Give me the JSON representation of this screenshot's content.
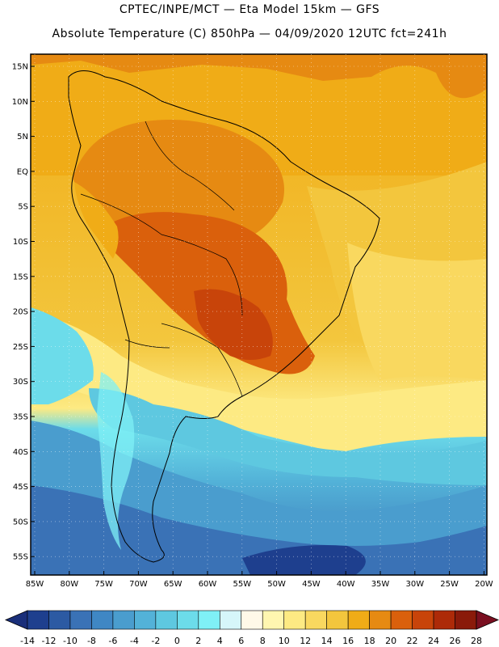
{
  "header": {
    "line1": "CPTEC/INPE/MCT —  Eta Model 15km — GFS",
    "line2": "Absolute Temperature (C) 850hPa — 04/09/2020 12UTC fct=241h"
  },
  "map": {
    "region": "South America",
    "variable": "Absolute Temperature (C) 850hPa",
    "lat_labels": [
      "15N",
      "10N",
      "5N",
      "EQ",
      "5S",
      "10S",
      "15S",
      "20S",
      "25S",
      "30S",
      "35S",
      "40S",
      "45S",
      "50S",
      "55S"
    ],
    "lon_labels": [
      "85W",
      "80W",
      "75W",
      "70W",
      "65W",
      "60W",
      "55W",
      "50W",
      "45W",
      "40W",
      "35W",
      "30W",
      "25W",
      "20W"
    ]
  },
  "legend": {
    "labels": [
      "-14",
      "-12",
      "-10",
      "-8",
      "-6",
      "-4",
      "-2",
      "0",
      "2",
      "4",
      "6",
      "8",
      "10",
      "12",
      "14",
      "16",
      "18",
      "20",
      "22",
      "24",
      "26",
      "28"
    ],
    "colors": [
      "#1e3f8e",
      "#2c5aa3",
      "#3a72b6",
      "#3f87c4",
      "#4a9dce",
      "#53b2d8",
      "#5ec8e0",
      "#6cdcea",
      "#7ff0f6",
      "#d6f6fa",
      "#fff9e8",
      "#fff6b0",
      "#fdea83",
      "#f9d85f",
      "#f3c63d",
      "#f0ac17",
      "#e68a12",
      "#da600c",
      "#c8440a",
      "#ad2a08",
      "#8a1a0a"
    ],
    "low_color": "#1a2f7a",
    "high_color": "#7a0f20"
  }
}
